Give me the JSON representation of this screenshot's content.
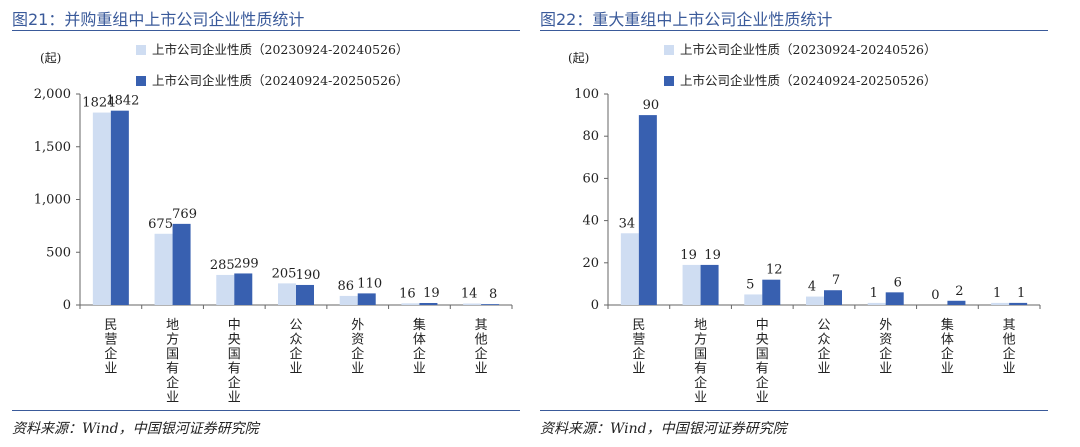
{
  "chart_data": [
    {
      "type": "bar",
      "title": "图21：并购重组中上市公司企业性质统计",
      "unit_label": "(起)",
      "categories": [
        "民营企业",
        "地方国有企业",
        "中央国有企业",
        "公众企业",
        "外资企业",
        "集体企业",
        "其他企业"
      ],
      "series": [
        {
          "name": "上市公司企业性质（20230924-20240526）",
          "color": "#cfddf2",
          "values": [
            1824,
            675,
            285,
            205,
            86,
            16,
            14
          ]
        },
        {
          "name": "上市公司企业性质（20240924-20250526）",
          "color": "#3860b0",
          "values": [
            1842,
            769,
            299,
            190,
            110,
            19,
            8
          ]
        }
      ],
      "ylim": [
        0,
        2000
      ],
      "yticks": [
        0,
        500,
        1000,
        1500,
        2000
      ],
      "ytick_labels": [
        "0",
        "500",
        "1,000",
        "1,500",
        "2,000"
      ],
      "grid": false,
      "legend": "top"
    },
    {
      "type": "bar",
      "title": "图22：重大重组中上市公司企业性质统计",
      "unit_label": "(起)",
      "categories": [
        "民营企业",
        "地方国有企业",
        "中央国有企业",
        "公众企业",
        "外资企业",
        "集体企业",
        "其他企业"
      ],
      "series": [
        {
          "name": "上市公司企业性质（20230924-20240526）",
          "color": "#cfddf2",
          "values": [
            34,
            19,
            5,
            4,
            1,
            0,
            1
          ]
        },
        {
          "name": "上市公司企业性质（20240924-20250526）",
          "color": "#3860b0",
          "values": [
            90,
            19,
            12,
            7,
            6,
            2,
            1
          ]
        }
      ],
      "ylim": [
        0,
        100
      ],
      "yticks": [
        0,
        20,
        40,
        60,
        80,
        100
      ],
      "ytick_labels": [
        "0",
        "20",
        "40",
        "60",
        "80",
        "100"
      ],
      "grid": false,
      "legend": "top"
    }
  ],
  "sources": [
    "资料来源：Wind，中国银河证券研究院",
    "资料来源：Wind，中国银河证券研究院"
  ]
}
